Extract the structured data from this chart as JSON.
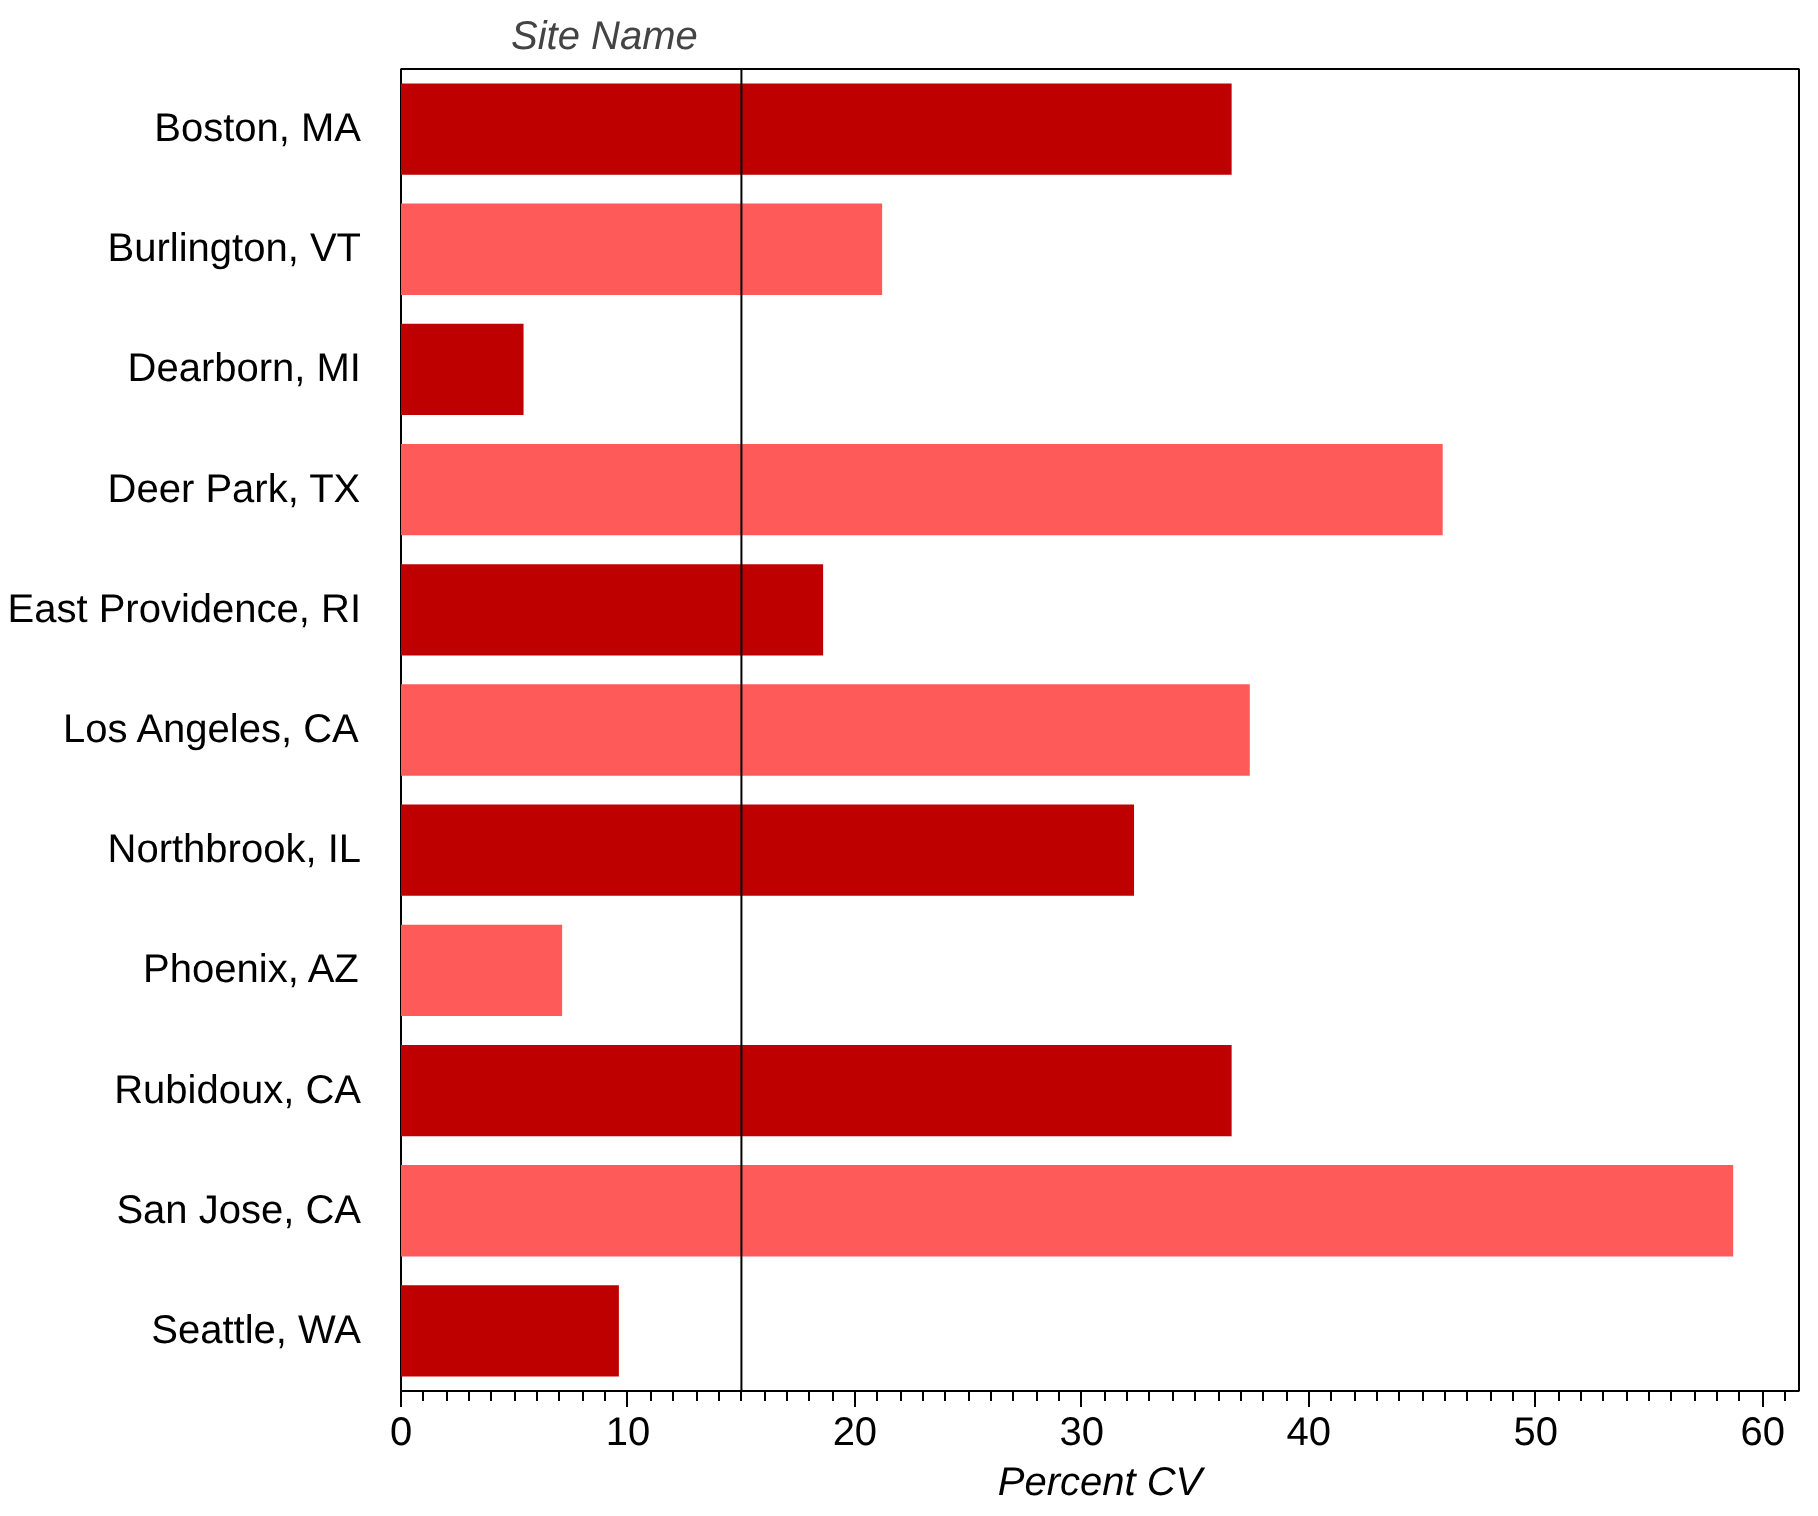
{
  "chart_data": {
    "type": "bar",
    "orientation": "horizontal",
    "ylabel": "Site Name",
    "xlabel": "Percent CV",
    "categories": [
      "Boston, MA",
      "Burlington, VT",
      "Dearborn, MI",
      "Deer Park, TX",
      "East Providence, RI",
      "Los Angeles, CA",
      "Northbrook, IL",
      "Phoenix, AZ",
      "Rubidoux, CA",
      "San Jose, CA",
      "Seattle, WA"
    ],
    "values": [
      36.6,
      21.2,
      5.4,
      45.9,
      18.6,
      37.4,
      32.3,
      7.1,
      36.6,
      58.7,
      9.6
    ],
    "colors": [
      "#bf0000",
      "#ff5a5a",
      "#bf0000",
      "#ff5a5a",
      "#bf0000",
      "#ff5a5a",
      "#bf0000",
      "#ff5a5a",
      "#bf0000",
      "#ff5a5a",
      "#bf0000"
    ],
    "xlim": [
      0,
      61.6
    ],
    "xticks": [
      0,
      10,
      20,
      30,
      40,
      50,
      60
    ],
    "ref_lines": [
      {
        "axis": "x",
        "value": 15,
        "color": "#000000"
      }
    ],
    "grid": false
  }
}
